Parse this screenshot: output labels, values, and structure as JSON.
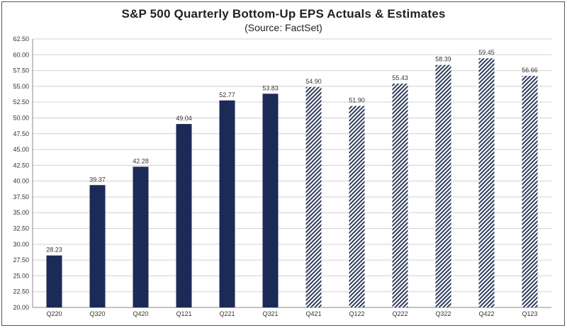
{
  "chart_data": {
    "type": "bar",
    "title": "S&P 500 Quarterly Bottom-Up EPS Actuals & Estimates",
    "subtitle": "(Source: FactSet)",
    "categories": [
      "Q220",
      "Q320",
      "Q420",
      "Q121",
      "Q221",
      "Q321",
      "Q421",
      "Q122",
      "Q222",
      "Q322",
      "Q422",
      "Q123"
    ],
    "values": [
      28.23,
      39.37,
      42.28,
      49.04,
      52.77,
      53.83,
      54.9,
      51.9,
      55.43,
      58.39,
      59.45,
      56.66
    ],
    "value_labels": [
      "28.23",
      "39.37",
      "42.28",
      "49.04",
      "52.77",
      "53.83",
      "54.90",
      "51.90",
      "55.43",
      "58.39",
      "59.45",
      "56.66"
    ],
    "bar_kind": [
      "actual",
      "actual",
      "actual",
      "actual",
      "actual",
      "actual",
      "estimate",
      "estimate",
      "estimate",
      "estimate",
      "estimate",
      "estimate"
    ],
    "ylim": [
      20,
      62.5
    ],
    "ytick_labels": [
      "20.00",
      "22.50",
      "25.00",
      "27.50",
      "30.00",
      "32.50",
      "35.00",
      "37.50",
      "40.00",
      "42.50",
      "45.00",
      "47.50",
      "50.00",
      "52.50",
      "55.00",
      "57.50",
      "60.00",
      "62.50"
    ],
    "grid": true,
    "legend": "none",
    "xlabel": "",
    "ylabel": "",
    "colors": {
      "actual": "#1c2a57",
      "estimate": "#2e3d5c",
      "grid": "#d0d0d0",
      "axis": "#888888"
    }
  }
}
